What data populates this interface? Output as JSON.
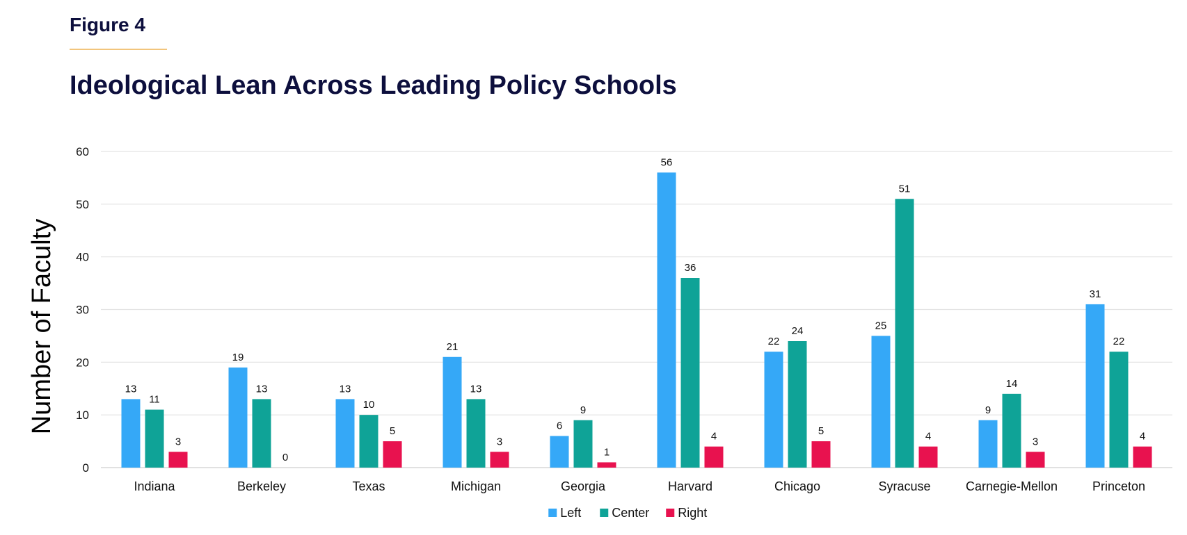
{
  "figure_label": "Figure 4",
  "colors": {
    "heading": "#0d0f3d",
    "rule": "#f2c57c",
    "grid": "#e3e3e3"
  },
  "chart_data": {
    "type": "bar",
    "title": "Ideological Lean Across Leading Policy Schools",
    "xlabel": "",
    "ylabel": "Number of Faculty",
    "ylim": [
      0,
      60
    ],
    "yticks": [
      0,
      10,
      20,
      30,
      40,
      50,
      60
    ],
    "grid": true,
    "legend_position": "bottom",
    "categories": [
      "Indiana",
      "Berkeley",
      "Texas",
      "Michigan",
      "Georgia",
      "Harvard",
      "Chicago",
      "Syracuse",
      "Carnegie-Mellon",
      "Princeton"
    ],
    "series": [
      {
        "name": "Left",
        "color": "#35a8f7",
        "values": [
          13,
          19,
          13,
          21,
          6,
          56,
          22,
          25,
          9,
          31
        ]
      },
      {
        "name": "Center",
        "color": "#0fa397",
        "values": [
          11,
          13,
          10,
          13,
          9,
          36,
          24,
          51,
          14,
          22
        ]
      },
      {
        "name": "Right",
        "color": "#e8124f",
        "values": [
          3,
          0,
          5,
          3,
          1,
          4,
          5,
          4,
          3,
          4
        ]
      }
    ]
  }
}
